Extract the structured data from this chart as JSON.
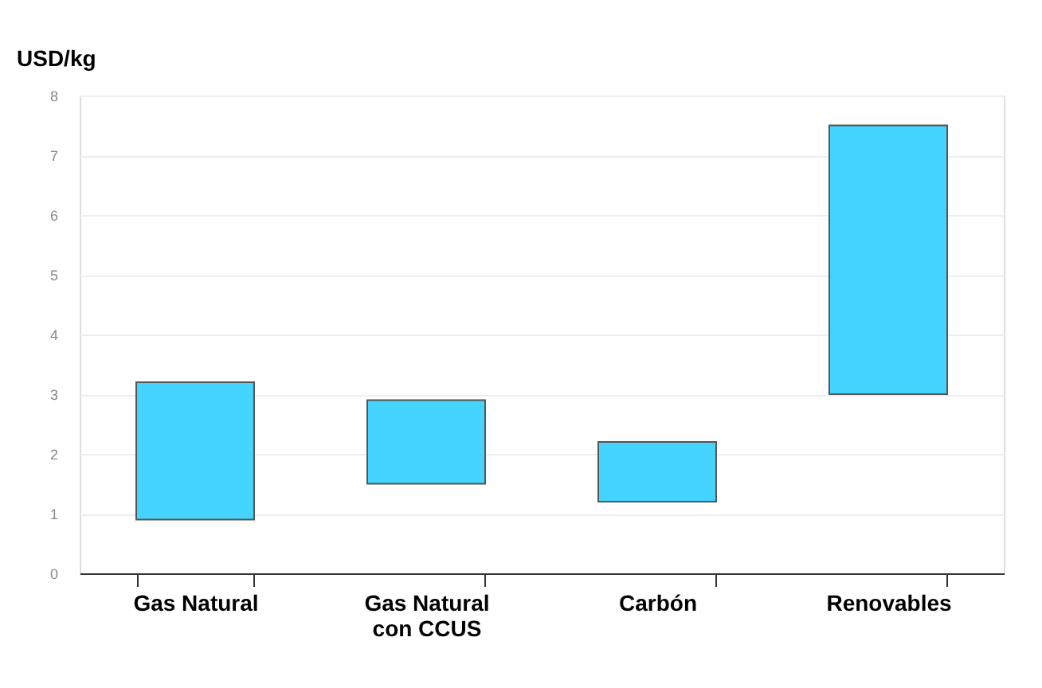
{
  "chart_data": {
    "type": "bar",
    "ylabel": "USD/kg",
    "categories": [
      "Gas Natural",
      "Gas Natural\ncon CCUS",
      "Carbón",
      "Renovables"
    ],
    "base": [
      0.9,
      1.5,
      1.2,
      3.0
    ],
    "values": [
      2.3,
      1.4,
      1.0,
      4.5
    ],
    "color": "#45d3ff",
    "ylim": [
      0,
      8
    ],
    "yticks": [
      0,
      1,
      2,
      3,
      4,
      5,
      6,
      7,
      8
    ],
    "grid": "y"
  }
}
